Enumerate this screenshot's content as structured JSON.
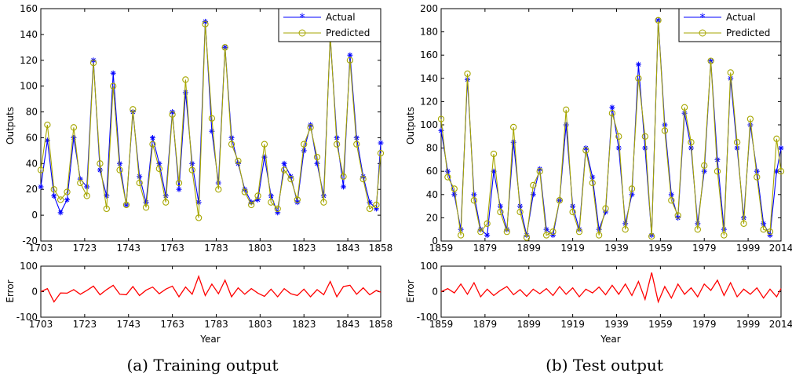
{
  "captions": [
    "(a) Training output",
    "(b) Test output"
  ],
  "colors": {
    "actual": "#0000ff",
    "predicted": "#a6a600",
    "error": "#ff0000"
  },
  "chart_data": [
    {
      "type": "line",
      "panel": "a-main",
      "ylabel": "Outputs",
      "xlim": [
        1703,
        1858
      ],
      "ylim": [
        -20,
        160
      ],
      "yticks": [
        -20,
        0,
        20,
        40,
        60,
        80,
        100,
        120,
        140,
        160
      ],
      "xticks": [
        1703,
        1723,
        1743,
        1763,
        1783,
        1803,
        1823,
        1843,
        1858
      ],
      "legend": {
        "placement": "top-right",
        "entries": [
          "Actual",
          "Predicted"
        ]
      },
      "x": [
        1703,
        1706,
        1709,
        1712,
        1715,
        1718,
        1721,
        1724,
        1727,
        1730,
        1733,
        1736,
        1739,
        1742,
        1745,
        1748,
        1751,
        1754,
        1757,
        1760,
        1763,
        1766,
        1769,
        1772,
        1775,
        1778,
        1781,
        1784,
        1787,
        1790,
        1793,
        1796,
        1799,
        1802,
        1805,
        1808,
        1811,
        1814,
        1817,
        1820,
        1823,
        1826,
        1829,
        1832,
        1835,
        1838,
        1841,
        1844,
        1847,
        1850,
        1853,
        1856,
        1858
      ],
      "series": [
        {
          "name": "Actual",
          "marker": "asterisk",
          "values": [
            22,
            58,
            15,
            2,
            12,
            60,
            28,
            22,
            120,
            35,
            15,
            110,
            40,
            8,
            80,
            30,
            10,
            60,
            40,
            15,
            80,
            20,
            95,
            40,
            10,
            150,
            65,
            25,
            130,
            60,
            40,
            20,
            10,
            12,
            45,
            15,
            2,
            40,
            30,
            10,
            50,
            70,
            40,
            15,
            138,
            60,
            22,
            124,
            60,
            30,
            10,
            5,
            56
          ]
        },
        {
          "name": "Predicted",
          "marker": "circle",
          "values": [
            35,
            70,
            20,
            12,
            18,
            68,
            25,
            15,
            118,
            40,
            5,
            100,
            35,
            8,
            82,
            25,
            6,
            55,
            36,
            10,
            78,
            25,
            105,
            35,
            -2,
            148,
            75,
            20,
            130,
            55,
            42,
            18,
            8,
            15,
            55,
            10,
            5,
            35,
            28,
            12,
            55,
            68,
            45,
            10,
            140,
            55,
            30,
            120,
            55,
            28,
            5,
            8,
            48
          ]
        }
      ]
    },
    {
      "type": "line",
      "panel": "a-error",
      "ylabel": "Error",
      "xlabel": "Year",
      "xlim": [
        1703,
        1858
      ],
      "ylim": [
        -100,
        100
      ],
      "yticks": [
        -100,
        0,
        100
      ],
      "xticks": [
        1703,
        1723,
        1743,
        1763,
        1783,
        1803,
        1823,
        1843,
        1858
      ],
      "x": [
        1703,
        1706,
        1709,
        1712,
        1715,
        1718,
        1721,
        1724,
        1727,
        1730,
        1733,
        1736,
        1739,
        1742,
        1745,
        1748,
        1751,
        1754,
        1757,
        1760,
        1763,
        1766,
        1769,
        1772,
        1775,
        1778,
        1781,
        1784,
        1787,
        1790,
        1793,
        1796,
        1799,
        1802,
        1805,
        1808,
        1811,
        1814,
        1817,
        1820,
        1823,
        1826,
        1829,
        1832,
        1835,
        1838,
        1841,
        1844,
        1847,
        1850,
        1853,
        1856,
        1858
      ],
      "series": [
        {
          "name": "Error",
          "values": [
            0,
            12,
            -40,
            -5,
            -6,
            8,
            -10,
            5,
            22,
            -12,
            8,
            25,
            -10,
            -12,
            20,
            -15,
            6,
            18,
            -8,
            10,
            22,
            -20,
            18,
            -10,
            60,
            -15,
            30,
            -8,
            45,
            -20,
            15,
            -10,
            12,
            -6,
            -18,
            10,
            -20,
            12,
            -8,
            -15,
            10,
            -20,
            8,
            -12,
            40,
            -20,
            20,
            25,
            -10,
            15,
            -12,
            5,
            -2
          ]
        }
      ]
    },
    {
      "type": "line",
      "panel": "b-main",
      "ylabel": "Outputs",
      "xlim": [
        1859,
        2014
      ],
      "ylim": [
        0,
        200
      ],
      "yticks": [
        0,
        20,
        40,
        60,
        80,
        100,
        120,
        140,
        160,
        180,
        200
      ],
      "xticks": [
        1859,
        1879,
        1899,
        1919,
        1939,
        1959,
        1979,
        1999,
        2014
      ],
      "legend": {
        "placement": "top-right",
        "entries": [
          "Actual",
          "Predicted"
        ]
      },
      "x": [
        1859,
        1862,
        1865,
        1868,
        1871,
        1874,
        1877,
        1880,
        1883,
        1886,
        1889,
        1892,
        1895,
        1898,
        1901,
        1904,
        1907,
        1910,
        1913,
        1916,
        1919,
        1922,
        1925,
        1928,
        1931,
        1934,
        1937,
        1940,
        1943,
        1946,
        1949,
        1952,
        1955,
        1958,
        1961,
        1964,
        1967,
        1970,
        1973,
        1976,
        1979,
        1982,
        1985,
        1988,
        1991,
        1994,
        1997,
        2000,
        2003,
        2006,
        2009,
        2012,
        2014
      ],
      "series": [
        {
          "name": "Actual",
          "marker": "asterisk",
          "values": [
            95,
            60,
            40,
            10,
            139,
            40,
            10,
            5,
            60,
            30,
            10,
            85,
            30,
            5,
            40,
            62,
            10,
            5,
            35,
            100,
            30,
            10,
            80,
            55,
            10,
            25,
            115,
            80,
            15,
            40,
            152,
            80,
            5,
            190,
            100,
            40,
            20,
            110,
            80,
            15,
            60,
            155,
            70,
            10,
            140,
            80,
            20,
            100,
            60,
            15,
            5,
            60,
            80
          ]
        },
        {
          "name": "Predicted",
          "marker": "circle",
          "values": [
            105,
            55,
            45,
            5,
            144,
            35,
            8,
            15,
            75,
            25,
            8,
            98,
            25,
            3,
            48,
            60,
            5,
            8,
            35,
            113,
            25,
            8,
            78,
            50,
            5,
            28,
            110,
            90,
            10,
            45,
            140,
            90,
            4,
            190,
            95,
            35,
            22,
            115,
            85,
            10,
            65,
            155,
            60,
            5,
            145,
            85,
            15,
            105,
            55,
            10,
            8,
            88,
            60
          ]
        }
      ]
    },
    {
      "type": "line",
      "panel": "b-error",
      "ylabel": "Error",
      "xlabel": "Year",
      "xlim": [
        1859,
        2014
      ],
      "ylim": [
        -100,
        100
      ],
      "yticks": [
        -100,
        0,
        100
      ],
      "xticks": [
        1859,
        1879,
        1899,
        1919,
        1939,
        1959,
        1979,
        1999,
        2014
      ],
      "x": [
        1859,
        1862,
        1865,
        1868,
        1871,
        1874,
        1877,
        1880,
        1883,
        1886,
        1889,
        1892,
        1895,
        1898,
        1901,
        1904,
        1907,
        1910,
        1913,
        1916,
        1919,
        1922,
        1925,
        1928,
        1931,
        1934,
        1937,
        1940,
        1943,
        1946,
        1949,
        1952,
        1955,
        1958,
        1961,
        1964,
        1967,
        1970,
        1973,
        1976,
        1979,
        1982,
        1985,
        1988,
        1991,
        1994,
        1997,
        2000,
        2003,
        2006,
        2009,
        2012,
        2014
      ],
      "series": [
        {
          "name": "Error",
          "values": [
            0,
            12,
            -5,
            30,
            -10,
            35,
            -20,
            10,
            -15,
            5,
            20,
            -12,
            8,
            -18,
            10,
            -8,
            12,
            -15,
            20,
            -10,
            15,
            -20,
            10,
            -5,
            18,
            -12,
            25,
            -10,
            30,
            -15,
            40,
            -30,
            75,
            -40,
            20,
            -25,
            30,
            -10,
            15,
            -20,
            30,
            5,
            45,
            -15,
            35,
            -20,
            10,
            -10,
            15,
            -25,
            10,
            -20,
            12
          ]
        }
      ]
    }
  ]
}
